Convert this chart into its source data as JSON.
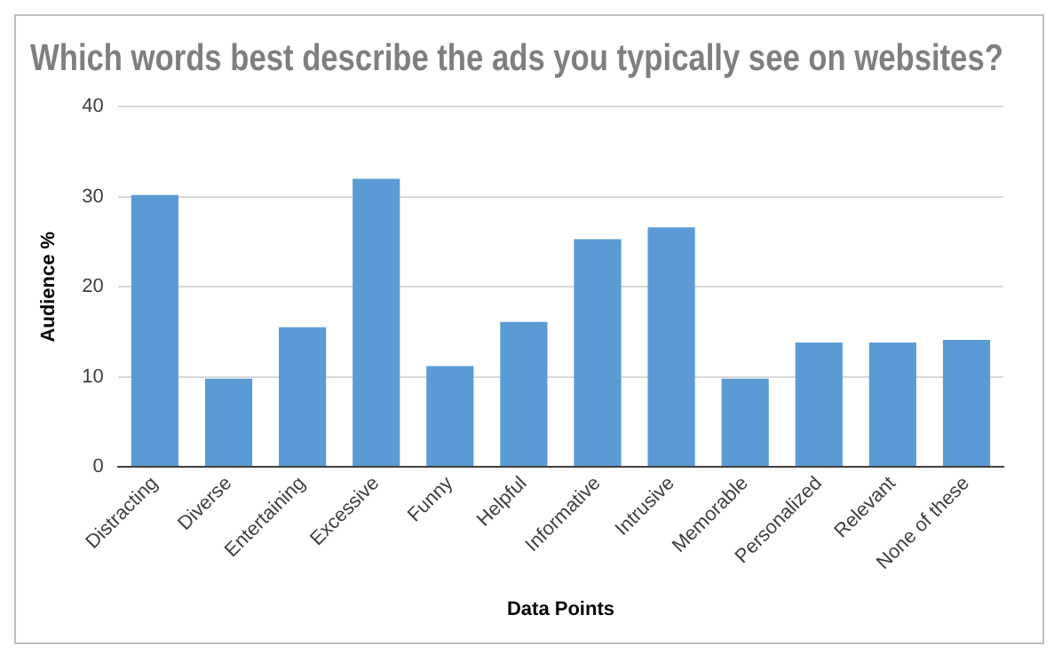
{
  "chart_data": {
    "type": "bar",
    "title": "Which words best describe the ads you typically see on websites?",
    "xlabel": "Data Points",
    "ylabel": "Audience %",
    "categories": [
      "Distracting",
      "Diverse",
      "Entertaining",
      "Excessive",
      "Funny",
      "Helpful",
      "Informative",
      "Intrusive",
      "Memorable",
      "Personalized",
      "Relevant",
      "None of these"
    ],
    "values": [
      30.2,
      9.8,
      15.5,
      32,
      11.2,
      16.1,
      25.3,
      26.6,
      9.8,
      13.8,
      13.8,
      14.1
    ],
    "color": "#5b9bd5",
    "ylim": [
      0,
      40
    ],
    "yticks": [
      0,
      10,
      20,
      30,
      40
    ],
    "grid": "y"
  }
}
